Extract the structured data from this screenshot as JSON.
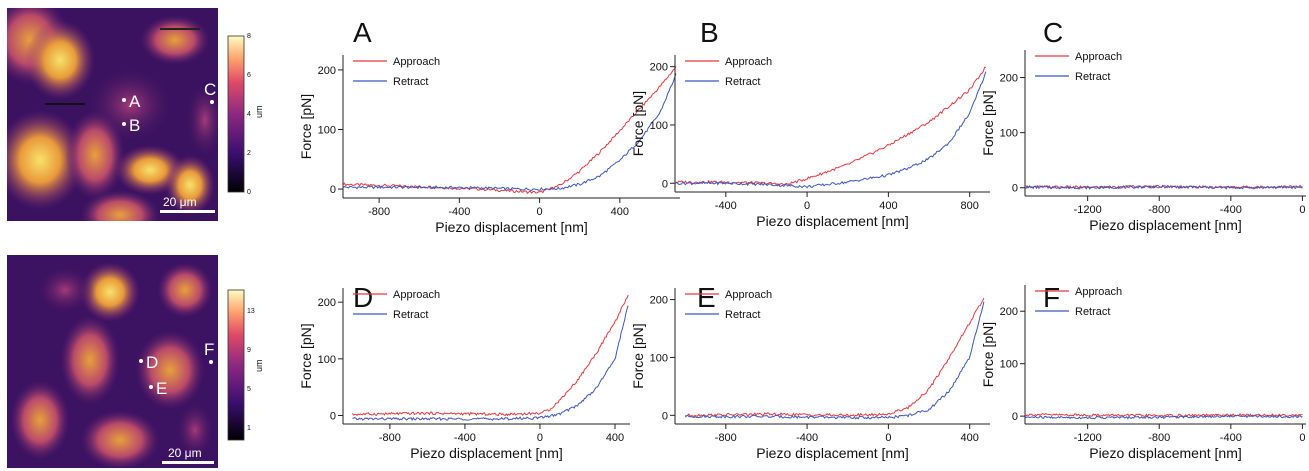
{
  "colors": {
    "approach": "#e8383d",
    "retract": "#3a57c4",
    "axis": "#222222",
    "text": "#111111"
  },
  "maps": [
    {
      "scale_bar_label": "20 μm",
      "colorbar_unit": "um",
      "colorbar_ticks": [
        "0",
        "2",
        "4",
        "6",
        "8"
      ],
      "colorbar_range": [
        0,
        8
      ],
      "points": [
        {
          "label": "A"
        },
        {
          "label": "B"
        },
        {
          "label": "C"
        }
      ]
    },
    {
      "scale_bar_label": "20 μm",
      "colorbar_unit": "um",
      "colorbar_ticks": [
        "1",
        "5",
        "9",
        "13"
      ],
      "colorbar_range": [
        0,
        15
      ],
      "points": [
        {
          "label": "D"
        },
        {
          "label": "E"
        },
        {
          "label": "F"
        }
      ]
    }
  ],
  "chart_data": [
    {
      "panel": "A",
      "type": "line",
      "xlabel": "Piezo displacement [nm]",
      "ylabel": "Force [pN]",
      "xlim": [
        -980,
        700
      ],
      "ylim": [
        -15,
        225
      ],
      "xticks": [
        -800,
        -400,
        0,
        400
      ],
      "yticks": [
        0,
        100,
        200
      ],
      "series": [
        {
          "name": "Approach",
          "color": "#e8383d",
          "x": [
            -980,
            -600,
            -300,
            -100,
            0,
            100,
            200,
            300,
            400,
            500,
            600,
            680
          ],
          "y": [
            8,
            4,
            0,
            -4,
            -6,
            6,
            30,
            62,
            98,
            135,
            172,
            205
          ]
        },
        {
          "name": "Retract",
          "color": "#3a57c4",
          "x": [
            -980,
            -600,
            -300,
            -100,
            0,
            100,
            200,
            300,
            400,
            500,
            600,
            680
          ],
          "y": [
            3,
            3,
            2,
            0,
            0,
            1,
            8,
            22,
            48,
            82,
            128,
            192
          ]
        }
      ]
    },
    {
      "panel": "B",
      "type": "line",
      "xlabel": "Piezo displacement [nm]",
      "ylabel": "Force [pN]",
      "xlim": [
        -650,
        900
      ],
      "ylim": [
        -15,
        220
      ],
      "xticks": [
        -400,
        0,
        400,
        800
      ],
      "yticks": [
        0,
        100,
        200
      ],
      "series": [
        {
          "name": "Approach",
          "color": "#e8383d",
          "x": [
            -650,
            -400,
            -200,
            -100,
            0,
            200,
            400,
            600,
            800,
            880
          ],
          "y": [
            2,
            2,
            0,
            -2,
            8,
            32,
            65,
            105,
            160,
            200
          ]
        },
        {
          "name": "Retract",
          "color": "#3a57c4",
          "x": [
            -650,
            -400,
            -200,
            0,
            200,
            400,
            500,
            600,
            700,
            800,
            880
          ],
          "y": [
            0,
            0,
            -2,
            -6,
            2,
            14,
            26,
            42,
            70,
            120,
            190
          ]
        }
      ]
    },
    {
      "panel": "C",
      "type": "line",
      "xlabel": "Piezo displacement [nm]",
      "ylabel": "Force [pN]",
      "xlim": [
        -1550,
        20
      ],
      "ylim": [
        -15,
        250
      ],
      "xticks": [
        -1200,
        -800,
        -400,
        0
      ],
      "yticks": [
        0,
        100,
        200
      ],
      "series": [
        {
          "name": "Approach",
          "color": "#e8383d",
          "x": [
            -1550,
            -1200,
            -800,
            -400,
            0
          ],
          "y": [
            2,
            1,
            2,
            1,
            2
          ]
        },
        {
          "name": "Retract",
          "color": "#3a57c4",
          "x": [
            -1550,
            -1200,
            -800,
            -400,
            0
          ],
          "y": [
            1,
            0,
            2,
            0,
            1
          ]
        }
      ]
    },
    {
      "panel": "D",
      "type": "line",
      "xlabel": "Piezo displacement [nm]",
      "ylabel": "Force [pN]",
      "xlim": [
        -1050,
        480
      ],
      "ylim": [
        -15,
        225
      ],
      "xticks": [
        -800,
        -400,
        0,
        400
      ],
      "yticks": [
        0,
        100,
        200
      ],
      "series": [
        {
          "name": "Approach",
          "color": "#e8383d",
          "x": [
            -1000,
            -600,
            -200,
            0,
            50,
            100,
            200,
            300,
            400,
            470
          ],
          "y": [
            2,
            4,
            2,
            4,
            10,
            25,
            62,
            110,
            165,
            212
          ]
        },
        {
          "name": "Retract",
          "color": "#3a57c4",
          "x": [
            -1000,
            -600,
            -200,
            0,
            100,
            200,
            300,
            400,
            470
          ],
          "y": [
            -6,
            -6,
            -6,
            -4,
            2,
            18,
            48,
            100,
            195
          ]
        }
      ]
    },
    {
      "panel": "E",
      "type": "line",
      "xlabel": "Piezo displacement [nm]",
      "ylabel": "Force [pN]",
      "xlim": [
        -1050,
        500
      ],
      "ylim": [
        -15,
        220
      ],
      "xticks": [
        -800,
        -400,
        0,
        400
      ],
      "yticks": [
        0,
        100,
        200
      ],
      "series": [
        {
          "name": "Approach",
          "color": "#e8383d",
          "x": [
            -1000,
            -600,
            -200,
            0,
            100,
            200,
            300,
            400,
            470
          ],
          "y": [
            0,
            2,
            0,
            2,
            14,
            45,
            100,
            160,
            202
          ]
        },
        {
          "name": "Retract",
          "color": "#3a57c4",
          "x": [
            -1000,
            -600,
            -200,
            0,
            100,
            200,
            300,
            400,
            470
          ],
          "y": [
            -2,
            -2,
            -4,
            -4,
            0,
            10,
            42,
            100,
            195
          ]
        }
      ]
    },
    {
      "panel": "F",
      "type": "line",
      "xlabel": "Piezo displacement [nm]",
      "ylabel": "Force [pN]",
      "xlim": [
        -1550,
        20
      ],
      "ylim": [
        -15,
        250
      ],
      "xticks": [
        -1200,
        -800,
        -400,
        0
      ],
      "yticks": [
        0,
        100,
        200
      ],
      "series": [
        {
          "name": "Approach",
          "color": "#e8383d",
          "x": [
            -1550,
            -1200,
            -800,
            -400,
            0
          ],
          "y": [
            3,
            2,
            1,
            2,
            2
          ]
        },
        {
          "name": "Retract",
          "color": "#3a57c4",
          "x": [
            -1550,
            -1200,
            -800,
            -400,
            0
          ],
          "y": [
            -2,
            -3,
            -2,
            0,
            -1
          ]
        }
      ]
    }
  ]
}
